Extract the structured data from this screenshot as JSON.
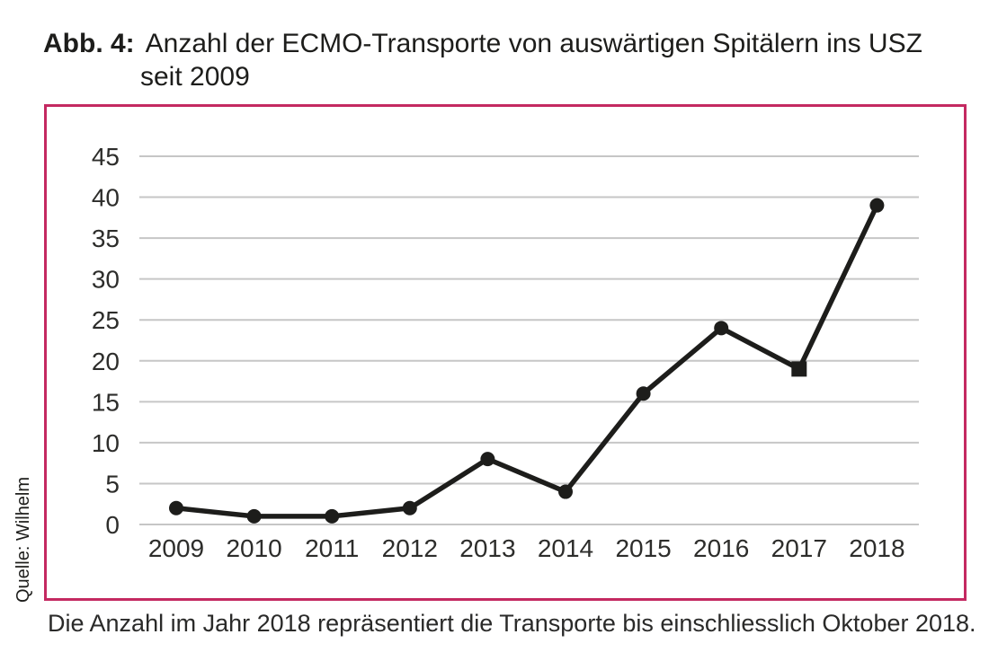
{
  "page": {
    "background": "#ffffff"
  },
  "figure": {
    "label": "Abb. 4:",
    "title_line1": "Anzahl der ECMO-Transporte von auswärtigen Spitälern ins USZ",
    "title_line2": "seit 2009",
    "source": "Quelle: Wilhelm",
    "caption": "Die Anzahl im Jahr 2018 repräsentiert die Transporte bis einschliesslich Oktober 2018."
  },
  "colors": {
    "frame_border": "#c42961",
    "series_line": "#1d1d1b",
    "gridline": "#c6c6c6",
    "tick_text": "#2d2d2b",
    "text": "#1d1d1b"
  },
  "chart_data": {
    "type": "line",
    "title": "Anzahl der ECMO-Transporte von auswärtigen Spitälern ins USZ seit 2009",
    "x": [
      "2009",
      "2010",
      "2011",
      "2012",
      "2013",
      "2014",
      "2015",
      "2016",
      "2017",
      "2018"
    ],
    "values": [
      2,
      1,
      1,
      2,
      8,
      4,
      16,
      24,
      19,
      39
    ],
    "markers": [
      "circle",
      "circle",
      "circle",
      "circle",
      "circle",
      "circle",
      "circle",
      "circle",
      "square",
      "circle"
    ],
    "ylim": [
      0,
      45
    ],
    "ytick_step": 5,
    "yticks": [
      0,
      5,
      10,
      15,
      20,
      25,
      30,
      35,
      40,
      45
    ],
    "grid": true,
    "legend": "none",
    "xlabel": "",
    "ylabel": ""
  }
}
